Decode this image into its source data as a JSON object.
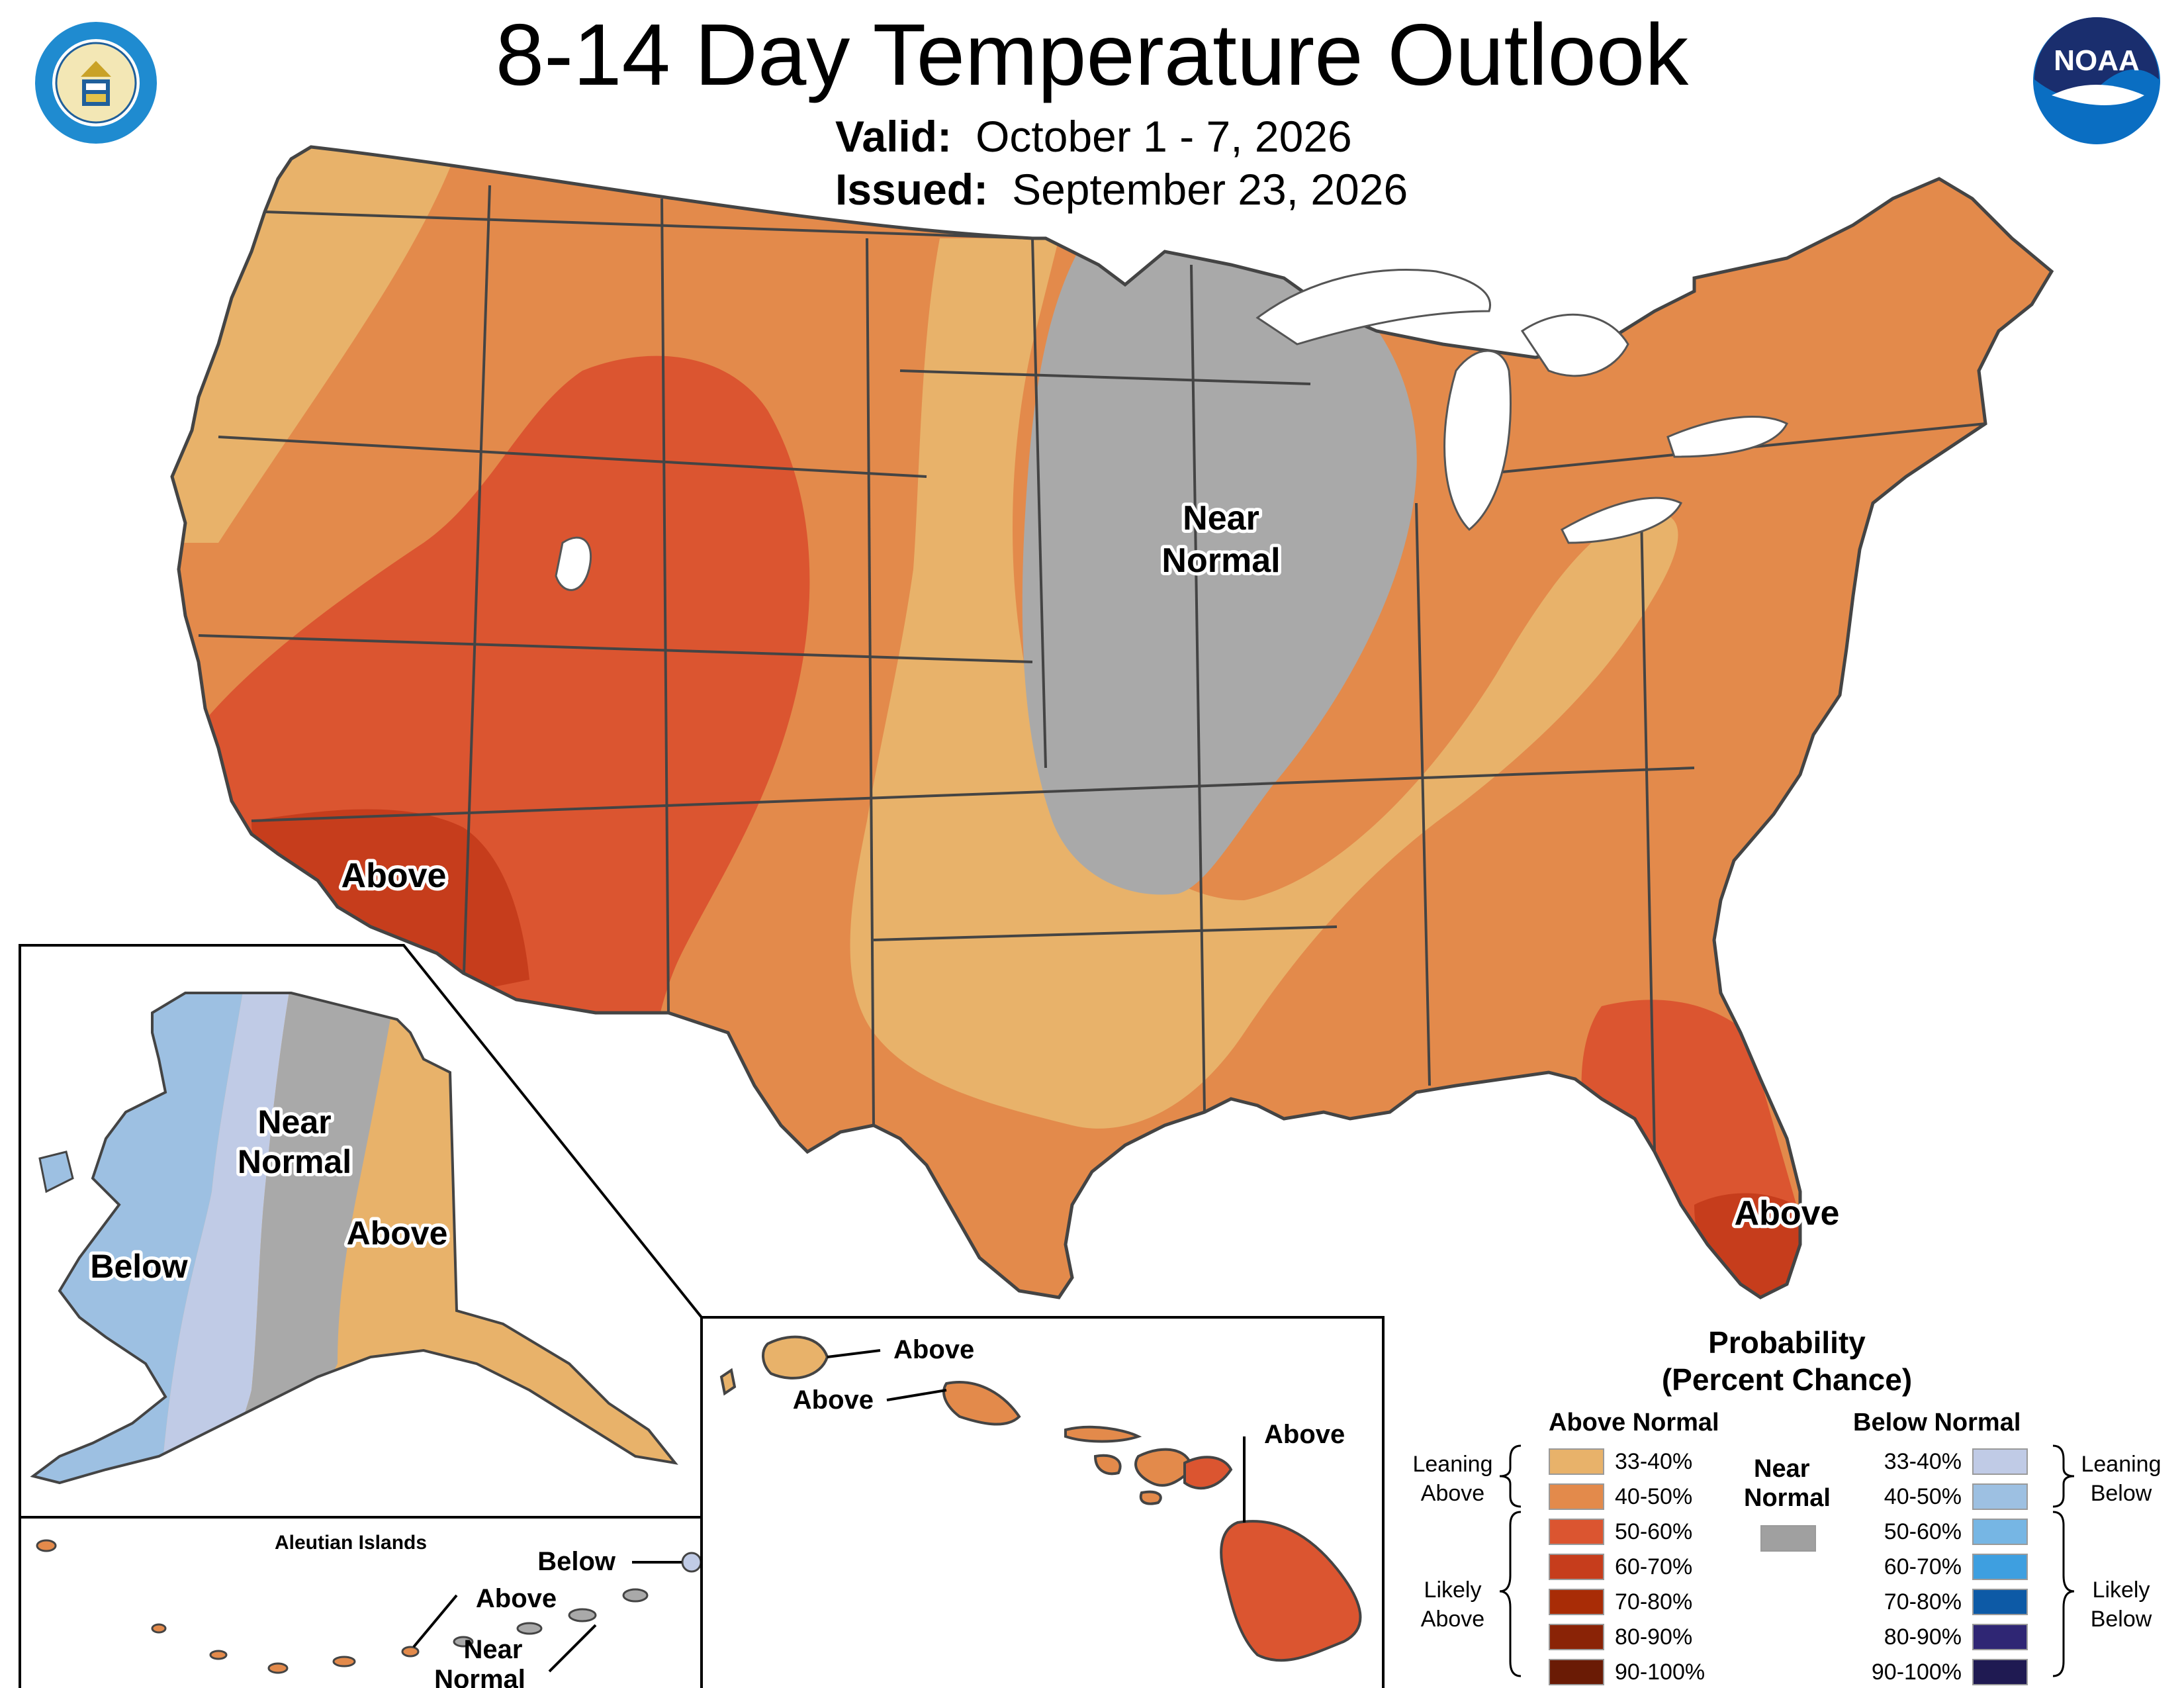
{
  "title": "8-14 Day Temperature Outlook",
  "valid": {
    "label": "Valid:",
    "value": "October 1 - 7, 2026"
  },
  "issued": {
    "label": "Issued:",
    "value": "September 23, 2026"
  },
  "logos": {
    "left": "department-of-commerce-seal",
    "right": "noaa-logo",
    "noaa_text": "NOAA"
  },
  "map_labels": {
    "conus_near_normal_1": "Near",
    "conus_near_normal_2": "Normal",
    "conus_above_southwest": "Above",
    "conus_above_florida": "Above",
    "ak_near_normal_1": "Near",
    "ak_near_normal_2": "Normal",
    "ak_above": "Above",
    "ak_below": "Below",
    "aleutian_title": "Aleutian Islands",
    "aleutian_below": "Below",
    "aleutian_above": "Above",
    "aleutian_near_1": "Near",
    "aleutian_near_2": "Normal",
    "hi_above_kauai": "Above",
    "hi_above_oahu": "Above",
    "hi_above_big_island": "Above"
  },
  "legend": {
    "title_1": "Probability",
    "title_2": "(Percent Chance)",
    "above_header": "Above Normal",
    "below_header": "Below Normal",
    "near_header_1": "Near",
    "near_header_2": "Normal",
    "near_color": "#a0a0a0",
    "leaning_above_1": "Leaning",
    "leaning_above_2": "Above",
    "likely_above_1": "Likely",
    "likely_above_2": "Above",
    "leaning_below_1": "Leaning",
    "leaning_below_2": "Below",
    "likely_below_1": "Likely",
    "likely_below_2": "Below",
    "above": [
      {
        "range": "33-40%",
        "color": "#e8b26a"
      },
      {
        "range": "40-50%",
        "color": "#e38a4b"
      },
      {
        "range": "50-60%",
        "color": "#db5530"
      },
      {
        "range": "60-70%",
        "color": "#c63d1c"
      },
      {
        "range": "70-80%",
        "color": "#a82c06"
      },
      {
        "range": "80-90%",
        "color": "#8a2306"
      },
      {
        "range": "90-100%",
        "color": "#6a1b05"
      }
    ],
    "below": [
      {
        "range": "33-40%",
        "color": "#c0cbe6"
      },
      {
        "range": "40-50%",
        "color": "#9dc0e2"
      },
      {
        "range": "50-60%",
        "color": "#76b6e4"
      },
      {
        "range": "60-70%",
        "color": "#3e9fe0"
      },
      {
        "range": "70-80%",
        "color": "#0d5aa6"
      },
      {
        "range": "80-90%",
        "color": "#2f2674"
      },
      {
        "range": "90-100%",
        "color": "#1f1a52"
      }
    ]
  }
}
